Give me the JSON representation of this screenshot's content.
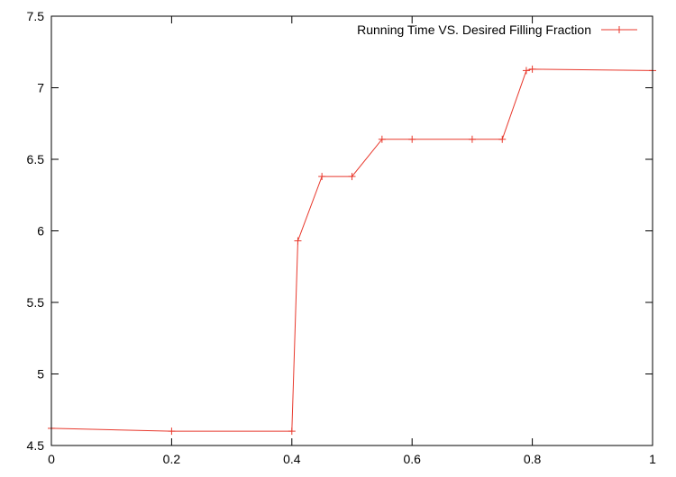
{
  "chart_data": {
    "type": "line",
    "title": "",
    "xlabel": "",
    "ylabel": "",
    "xlim": [
      0,
      1
    ],
    "ylim": [
      4.5,
      7.5
    ],
    "x_ticks": [
      0,
      0.2,
      0.4,
      0.6,
      0.8,
      1
    ],
    "x_tick_labels": [
      "0",
      "0.2",
      "0.4",
      "0.6",
      "0.8",
      "1"
    ],
    "y_ticks": [
      4.5,
      5,
      5.5,
      6,
      6.5,
      7,
      7.5
    ],
    "y_tick_labels": [
      "4.5",
      "5",
      "5.5",
      "6",
      "6.5",
      "7",
      "7.5"
    ],
    "grid": false,
    "legend_position": "top-right",
    "series": [
      {
        "name": "Running Time VS. Desired Filling Fraction",
        "color": "#e8382c",
        "marker": "plus",
        "x": [
          0,
          0.2,
          0.4,
          0.41,
          0.45,
          0.5,
          0.55,
          0.6,
          0.7,
          0.75,
          0.79,
          0.8,
          1
        ],
        "y": [
          4.62,
          4.6,
          4.6,
          5.93,
          6.38,
          6.38,
          6.64,
          6.64,
          6.64,
          6.64,
          7.12,
          7.13,
          7.12
        ]
      }
    ]
  }
}
